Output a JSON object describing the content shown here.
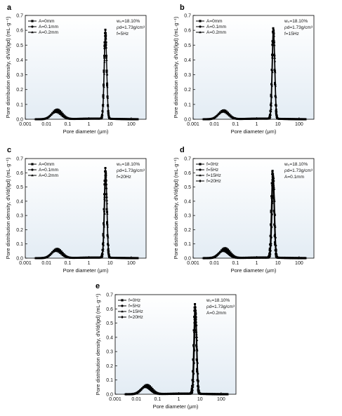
{
  "figure": {
    "xlabel": "Pore diameter (μm)",
    "ylabel": "Pore distribution density, dV/d(lgd) (mL·g⁻¹)",
    "x_ticks": [
      "0.001",
      "0.01",
      "0.1",
      "1",
      "10",
      "100"
    ],
    "y_ticks": [
      "0.0",
      "0.1",
      "0.2",
      "0.3",
      "0.4",
      "0.5",
      "0.6",
      "0.7"
    ],
    "annot_line1": "w₀=18.10%",
    "annot_line2": "ρd=1.73g/cm³"
  },
  "chart_data": [
    {
      "type": "line",
      "panel": "a",
      "x_scale": "log",
      "xlim": [
        0.001,
        500
      ],
      "ylim": [
        0,
        0.7
      ],
      "annotation": "f=5Hz",
      "series": [
        {
          "name": "A=0mm",
          "peak_small_x": 0.032,
          "peak_small_y": 0.065,
          "peak_main_x": 6.0,
          "peak_main_y": 0.6
        },
        {
          "name": "A=0.1mm",
          "peak_small_x": 0.03,
          "peak_small_y": 0.055,
          "peak_main_x": 6.0,
          "peak_main_y": 0.58
        },
        {
          "name": "A=0.2mm",
          "peak_small_x": 0.028,
          "peak_small_y": 0.048,
          "peak_main_x": 6.2,
          "peak_main_y": 0.56
        }
      ]
    },
    {
      "type": "line",
      "panel": "b",
      "x_scale": "log",
      "xlim": [
        0.001,
        500
      ],
      "ylim": [
        0,
        0.7
      ],
      "annotation": "f=15Hz",
      "series": [
        {
          "name": "A=0mm",
          "peak_small_x": 0.028,
          "peak_small_y": 0.06,
          "peak_main_x": 6.0,
          "peak_main_y": 0.61
        },
        {
          "name": "A=0.1mm",
          "peak_small_x": 0.027,
          "peak_small_y": 0.055,
          "peak_main_x": 6.2,
          "peak_main_y": 0.6
        },
        {
          "name": "A=0.2mm",
          "peak_small_x": 0.026,
          "peak_small_y": 0.05,
          "peak_main_x": 6.4,
          "peak_main_y": 0.58
        }
      ]
    },
    {
      "type": "line",
      "panel": "c",
      "x_scale": "log",
      "xlim": [
        0.001,
        500
      ],
      "ylim": [
        0,
        0.7
      ],
      "annotation": "f=20Hz",
      "series": [
        {
          "name": "A=0mm",
          "peak_small_x": 0.032,
          "peak_small_y": 0.065,
          "peak_main_x": 6.0,
          "peak_main_y": 0.63
        },
        {
          "name": "A=0.1mm",
          "peak_small_x": 0.03,
          "peak_small_y": 0.06,
          "peak_main_x": 6.2,
          "peak_main_y": 0.6
        },
        {
          "name": "A=0.2mm",
          "peak_small_x": 0.028,
          "peak_small_y": 0.05,
          "peak_main_x": 6.4,
          "peak_main_y": 0.57
        }
      ]
    },
    {
      "type": "line",
      "panel": "d",
      "x_scale": "log",
      "xlim": [
        0.001,
        500
      ],
      "ylim": [
        0,
        0.7
      ],
      "annotation": "A=0.1mm",
      "series": [
        {
          "name": "f=0Hz",
          "peak_small_x": 0.032,
          "peak_small_y": 0.07,
          "peak_main_x": 5.6,
          "peak_main_y": 0.61
        },
        {
          "name": "f=5Hz",
          "peak_small_x": 0.03,
          "peak_small_y": 0.06,
          "peak_main_x": 5.8,
          "peak_main_y": 0.59
        },
        {
          "name": "f=15Hz",
          "peak_small_x": 0.028,
          "peak_small_y": 0.055,
          "peak_main_x": 6.0,
          "peak_main_y": 0.58
        },
        {
          "name": "f=20Hz",
          "peak_small_x": 0.026,
          "peak_small_y": 0.05,
          "peak_main_x": 6.2,
          "peak_main_y": 0.56
        }
      ]
    },
    {
      "type": "line",
      "panel": "e",
      "x_scale": "log",
      "xlim": [
        0.001,
        500
      ],
      "ylim": [
        0,
        0.7
      ],
      "annotation": "A=0.2mm",
      "series": [
        {
          "name": "f=0Hz",
          "peak_small_x": 0.032,
          "peak_small_y": 0.065,
          "peak_main_x": 5.8,
          "peak_main_y": 0.63
        },
        {
          "name": "f=5Hz",
          "peak_small_x": 0.03,
          "peak_small_y": 0.06,
          "peak_main_x": 6.0,
          "peak_main_y": 0.61
        },
        {
          "name": "f=15Hz",
          "peak_small_x": 0.028,
          "peak_small_y": 0.055,
          "peak_main_x": 6.2,
          "peak_main_y": 0.59
        },
        {
          "name": "f=20Hz",
          "peak_small_x": 0.026,
          "peak_small_y": 0.05,
          "peak_main_x": 6.4,
          "peak_main_y": 0.56
        }
      ]
    }
  ]
}
